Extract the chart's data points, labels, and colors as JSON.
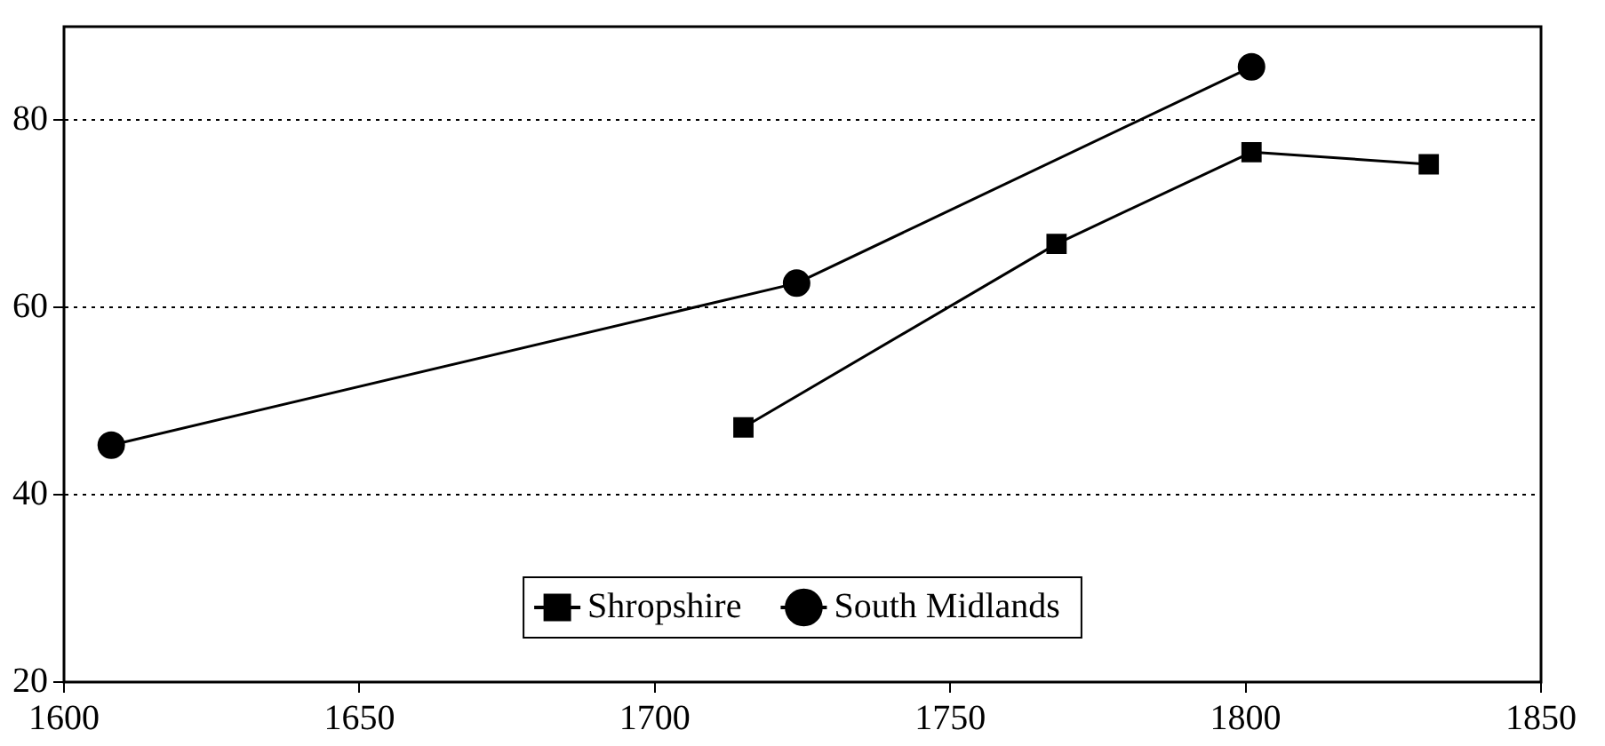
{
  "chart_data": {
    "type": "line",
    "xlim": [
      1600,
      1850
    ],
    "xticks": [
      1600,
      1650,
      1700,
      1750,
      1800,
      1850
    ],
    "ylim": [
      20,
      90
    ],
    "yticks": [
      20,
      40,
      60,
      80
    ],
    "grid": "y",
    "legend": "bottom",
    "line_style": "solid",
    "series": [
      {
        "name": "Shropshire",
        "color": "#000000",
        "marker": "square",
        "x": [
          1715,
          1768,
          1801,
          1831
        ],
        "values": [
          47.2,
          66.8,
          76.6,
          75.3
        ]
      },
      {
        "name": "South Midlands",
        "color": "#000000",
        "marker": "circle",
        "x": [
          1608,
          1724,
          1801
        ],
        "values": [
          45.3,
          62.6,
          85.7
        ]
      }
    ]
  }
}
